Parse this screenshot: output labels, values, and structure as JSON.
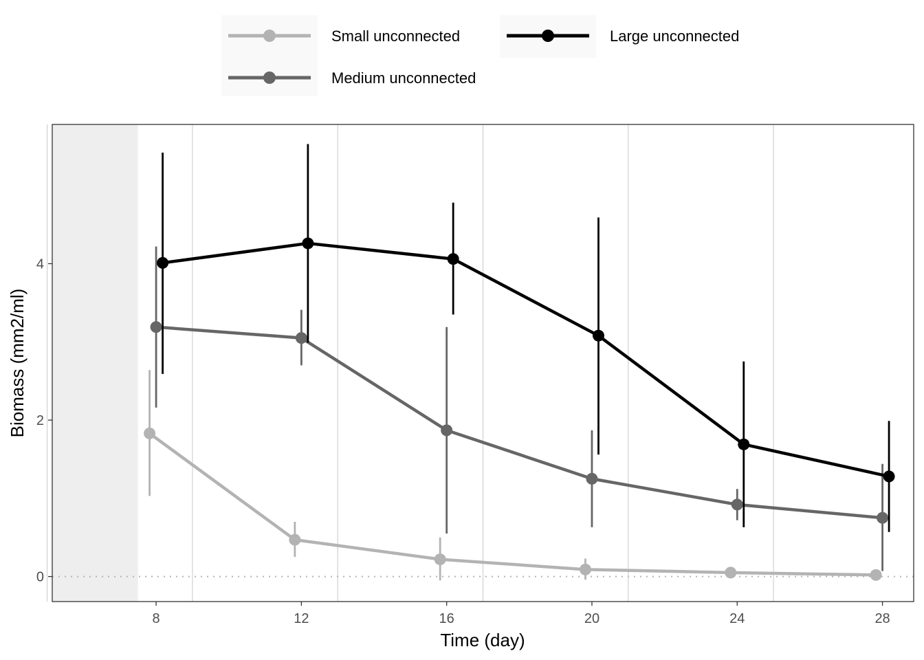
{
  "chart_data": {
    "type": "line",
    "title": "",
    "xlabel": "Time (day)",
    "ylabel": "Biomass (mm2/ml)",
    "xlim": [
      5.14,
      28.86
    ],
    "ylim": [
      -0.32,
      5.78
    ],
    "x_ticks": [
      "8",
      "12",
      "16",
      "20",
      "24",
      "28"
    ],
    "y_ticks": [
      "0",
      "2",
      "4"
    ],
    "shaded_region": [
      5.14,
      7.5
    ],
    "reference_line_y": 0,
    "grid": "vertical",
    "legend_position": "top",
    "series": [
      {
        "name": "Small unconnected",
        "color": "#b3b3b3",
        "dodge": -0.18,
        "x": [
          8,
          12,
          16,
          20,
          24,
          28
        ],
        "y": [
          1.83,
          0.47,
          0.22,
          0.09,
          0.05,
          0.02
        ],
        "y_low": [
          1.03,
          0.25,
          -0.05,
          -0.04,
          0.0,
          0.0
        ],
        "y_high": [
          2.64,
          0.7,
          0.5,
          0.23,
          0.1,
          0.05
        ]
      },
      {
        "name": "Medium unconnected",
        "color": "#666666",
        "dodge": 0.0,
        "x": [
          8,
          12,
          16,
          20,
          24,
          28
        ],
        "y": [
          3.19,
          3.05,
          1.87,
          1.25,
          0.92,
          0.75
        ],
        "y_low": [
          2.16,
          2.7,
          0.55,
          0.63,
          0.72,
          0.07
        ],
        "y_high": [
          4.22,
          3.41,
          3.19,
          1.87,
          1.12,
          1.44
        ]
      },
      {
        "name": "Large unconnected",
        "color": "#000000",
        "dodge": 0.18,
        "x": [
          8,
          12,
          16,
          20,
          24,
          28
        ],
        "y": [
          4.01,
          4.26,
          4.06,
          3.08,
          1.69,
          1.28
        ],
        "y_low": [
          2.59,
          2.99,
          3.35,
          1.56,
          0.63,
          0.57
        ],
        "y_high": [
          5.42,
          5.53,
          4.78,
          4.59,
          2.75,
          1.99
        ]
      }
    ],
    "legend": {
      "entries": [
        "Small unconnected",
        "Large unconnected",
        "Medium unconnected"
      ]
    }
  }
}
